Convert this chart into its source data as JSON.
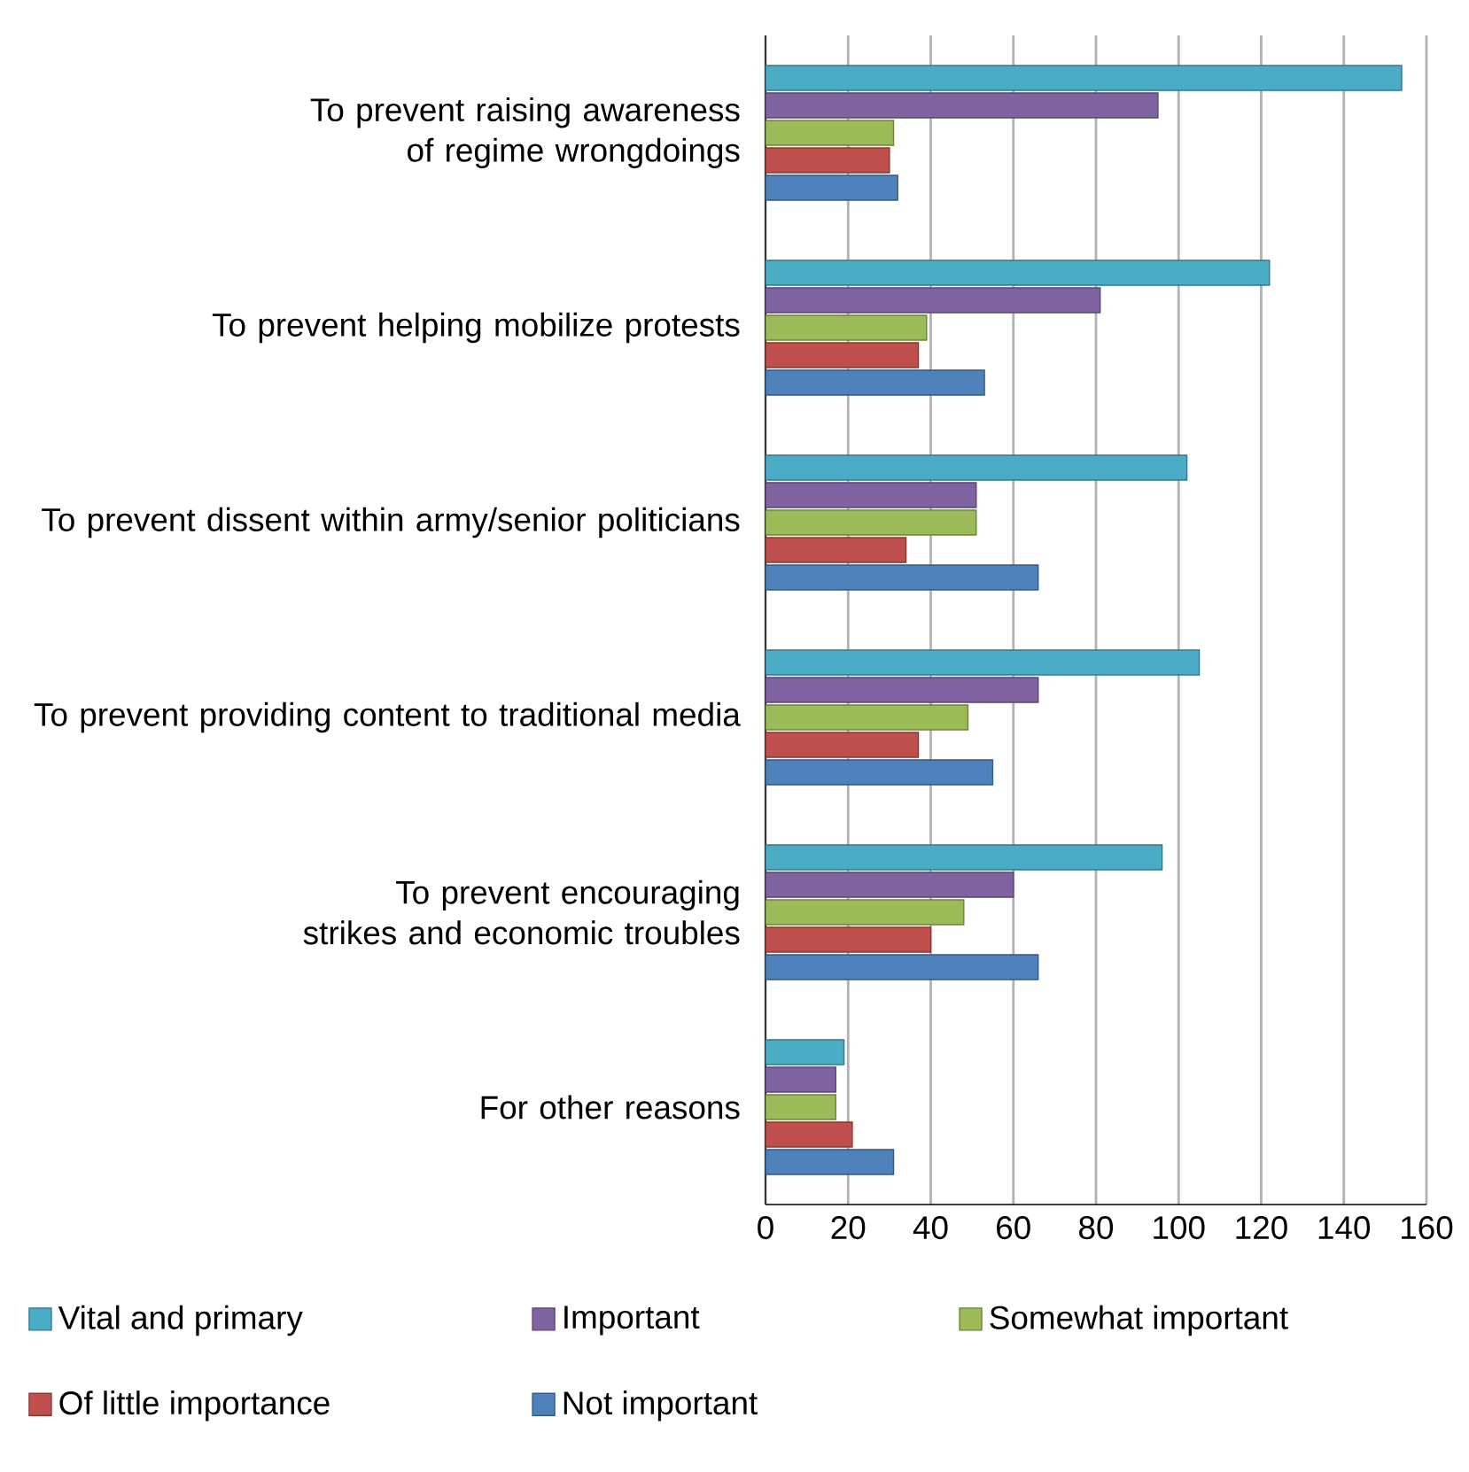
{
  "chart_data": {
    "type": "bar",
    "orientation": "horizontal",
    "categories": [
      "To prevent raising awareness of regime wrongdoings",
      "To prevent helping mobilize protests",
      "To prevent dissent within army/senior politicians",
      "To prevent providing content to traditional media",
      "To prevent encouraging strikes and economic troubles",
      "For other reasons"
    ],
    "series": [
      {
        "name": "Vital and primary",
        "color": "#4bacc6",
        "values": [
          154,
          122,
          102,
          105,
          96,
          19
        ]
      },
      {
        "name": "Important",
        "color": "#8064a2",
        "values": [
          95,
          81,
          51,
          66,
          60,
          17
        ]
      },
      {
        "name": "Somewhat important",
        "color": "#9bbb59",
        "values": [
          31,
          39,
          51,
          49,
          48,
          17
        ]
      },
      {
        "name": "Of little importance",
        "color": "#c0504d",
        "values": [
          30,
          37,
          34,
          37,
          40,
          21
        ]
      },
      {
        "name": "Not important",
        "color": "#4f81bd",
        "values": [
          32,
          53,
          66,
          55,
          66,
          31
        ]
      }
    ],
    "xlim": [
      0,
      160
    ],
    "xticks": [
      0,
      20,
      40,
      60,
      80,
      100,
      120,
      140,
      160
    ],
    "grid": "x",
    "legend": "bottom"
  }
}
